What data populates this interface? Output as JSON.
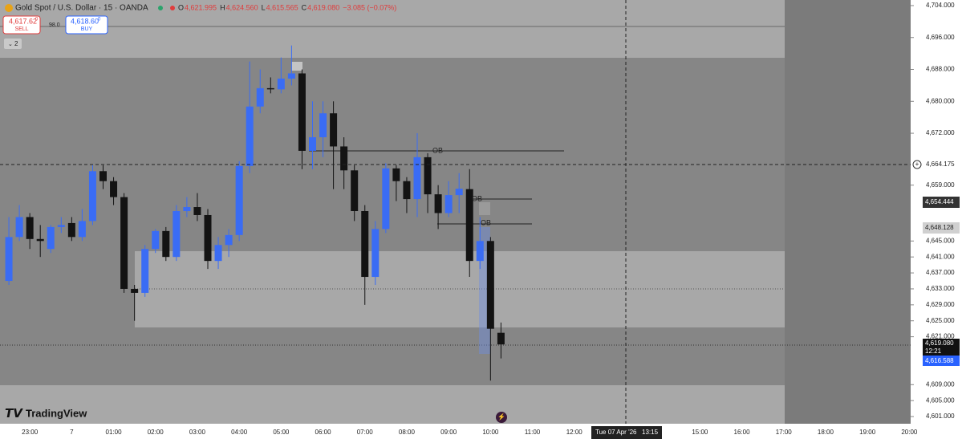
{
  "chart_data": {
    "type": "candlestick",
    "title": "Gold Spot / U.S. Dollar · 15 · OANDA",
    "categories": [
      null,
      null,
      null,
      "23:00",
      null,
      null,
      null,
      "7",
      null,
      null,
      null,
      "01:00",
      null,
      null,
      null,
      "02:00",
      null,
      null,
      null,
      "03:00",
      null,
      null,
      null,
      "04:00",
      null,
      null,
      null,
      "05:00",
      null,
      null,
      null,
      "06:00",
      null,
      null,
      null,
      "07:00",
      null,
      null,
      null,
      "08:00",
      null,
      null,
      null,
      "09:00",
      null,
      null,
      null,
      "10:00",
      null,
      null,
      null,
      "11:00",
      null,
      null,
      null,
      "12:00",
      null,
      null,
      null,
      null,
      null,
      null,
      null,
      null,
      null,
      null,
      null,
      "15:00",
      null,
      null,
      null,
      "16:00",
      null,
      null,
      null,
      "17:00",
      null,
      null,
      null,
      "18:00",
      null,
      null,
      null,
      "19:00",
      null,
      null,
      null,
      "20:00"
    ],
    "open": [
      null,
      4635,
      4646,
      4651,
      4645.5,
      4643,
      4648.5,
      4649.5,
      4646,
      4650,
      4662.5,
      4660,
      4656,
      4633,
      4632,
      4643,
      4647.5,
      4641,
      4652.5,
      4653.5,
      4651.5,
      4640,
      4644,
      4646.5,
      4663.8,
      4678.7,
      4683.3,
      4683,
      4685.7,
      4687,
      4667.6,
      4671,
      4677,
      4668.7,
      4662.7,
      4652.5,
      4636,
      4648,
      4663.2,
      4660,
      4655.5,
      4666,
      4656.7,
      4652,
      4656.5,
      4658,
      4640,
      4645,
      4621.995,
      null,
      null,
      null,
      null,
      null,
      null,
      null,
      null,
      null,
      null,
      null,
      null,
      null,
      null,
      null,
      null,
      null,
      null,
      null,
      null,
      null,
      null,
      null,
      null,
      null,
      null,
      null,
      null,
      null,
      null,
      null,
      null,
      null,
      null,
      null,
      null,
      null,
      null,
      null
    ],
    "high": [
      null,
      4651,
      4654,
      4652,
      4649,
      4649,
      4651,
      4651,
      4653,
      4664,
      4664,
      4661,
      4657,
      4634,
      4644,
      4648,
      4648.5,
      4654,
      4656,
      4657,
      4653,
      4646,
      4648,
      4665,
      4690,
      4688,
      4686,
      4691,
      4694,
      4688,
      4680,
      4680,
      4680,
      4671,
      4664,
      4654,
      4650,
      4664.5,
      4664,
      4661,
      4672,
      4667,
      4659,
      4660,
      4662,
      4663,
      4651,
      4646,
      4624.56,
      null,
      null,
      null,
      null,
      null,
      null,
      null,
      null,
      null,
      null,
      null,
      null,
      null,
      null,
      null,
      null,
      null,
      null,
      null,
      null,
      null,
      null,
      null,
      null,
      null,
      null,
      null,
      null,
      null,
      null,
      null,
      null,
      null,
      null,
      null,
      null,
      null,
      null,
      null
    ],
    "low": [
      null,
      4634,
      4645,
      4643,
      4641,
      4642,
      4647,
      4645,
      4645,
      4649,
      4658,
      4654,
      4632,
      4625,
      4631,
      4642,
      4640,
      4640,
      4651,
      4650,
      4638,
      4638,
      4641,
      4645,
      4662,
      4677,
      4682,
      4682,
      4684,
      4663,
      4663,
      4666,
      4658,
      4658,
      4650,
      4629,
      4634,
      4647,
      4655,
      4652,
      4651,
      4652,
      4648,
      4651,
      4652,
      4636,
      4638,
      4610,
      4615.565,
      null,
      null,
      null,
      null,
      null,
      null,
      null,
      null,
      null,
      null,
      null,
      null,
      null,
      null,
      null,
      null,
      null,
      null,
      null,
      null,
      null,
      null,
      null,
      null,
      null,
      null,
      null,
      null,
      null,
      null,
      null,
      null,
      null,
      null,
      null,
      null,
      null,
      null,
      null
    ],
    "close": [
      null,
      4646,
      4651,
      4645.5,
      4645,
      4648.5,
      4649,
      4646,
      4650,
      4662.5,
      4660,
      4656,
      4633,
      4632,
      4643,
      4647.5,
      4641,
      4652.5,
      4653.5,
      4651.5,
      4640,
      4644,
      4646.5,
      4663.8,
      4678.7,
      4683.3,
      4683,
      4685.7,
      4687,
      4667.6,
      4671,
      4677,
      4668.7,
      4662.7,
      4652.5,
      4636,
      4648,
      4663.2,
      4660,
      4655.5,
      4666,
      4656.7,
      4652,
      4656.5,
      4658.1,
      4640,
      4645,
      4623,
      4619.08,
      null,
      null,
      null,
      null,
      null,
      null,
      null,
      null,
      null,
      null,
      null,
      null,
      null,
      null,
      null,
      null,
      null,
      null,
      null,
      null,
      null,
      null,
      null,
      null,
      null,
      null,
      null,
      null,
      null,
      null,
      null,
      null,
      null,
      null,
      null,
      null,
      null,
      null,
      null
    ],
    "up_color": "#3a6cf4",
    "down_color": "#131313",
    "ylim": [
      4599.2,
      4705.4
    ],
    "yticks": [
      {
        "value": 4704,
        "label": "4,704.000"
      },
      {
        "value": 4696,
        "label": "4,696.000"
      },
      {
        "value": 4688,
        "label": "4,688.000"
      },
      {
        "value": 4680,
        "label": "4,680.000"
      },
      {
        "value": 4672,
        "label": "4,672.000"
      },
      {
        "value": 4659,
        "label": "4,659.000"
      },
      {
        "value": 4645,
        "label": "4,645.000"
      },
      {
        "value": 4641,
        "label": "4,641.000"
      },
      {
        "value": 4637,
        "label": "4,637.000"
      },
      {
        "value": 4633,
        "label": "4,633.000"
      },
      {
        "value": 4629,
        "label": "4,629.000"
      },
      {
        "value": 4625,
        "label": "4,625.000"
      },
      {
        "value": 4621,
        "label": "4,621.000"
      },
      {
        "value": 4609,
        "label": "4,609.000"
      },
      {
        "value": 4605,
        "label": "4,605.000"
      },
      {
        "value": 4601,
        "label": "4,601.000"
      }
    ]
  },
  "header": {
    "ohlc": [
      {
        "key": "O",
        "value": "4,621.995"
      },
      {
        "key": "H",
        "value": "4,624.560"
      },
      {
        "key": "L",
        "value": "4,615.565"
      },
      {
        "key": "C",
        "value": "4,619.080"
      }
    ],
    "change": "−3.085 (−0.07%)",
    "sell": {
      "price": "4,617.62",
      "sup": "0",
      "label": "SELL"
    },
    "buy": {
      "price": "4,618.60",
      "sup": "0",
      "label": "BUY"
    },
    "spread": "98.0",
    "indicators": "2"
  },
  "price_labels": {
    "crosshair": "4,664.175",
    "level1": "4,654.444",
    "level2": "4,648.128",
    "last": "4,619.080",
    "countdown": "12:21",
    "bid": "4,616.588"
  },
  "annotations": [
    "OB",
    "OB",
    "OB"
  ],
  "crosshair": {
    "date": "Tue 07 Apr '26",
    "time": "13:15"
  },
  "logo": "TradingView"
}
